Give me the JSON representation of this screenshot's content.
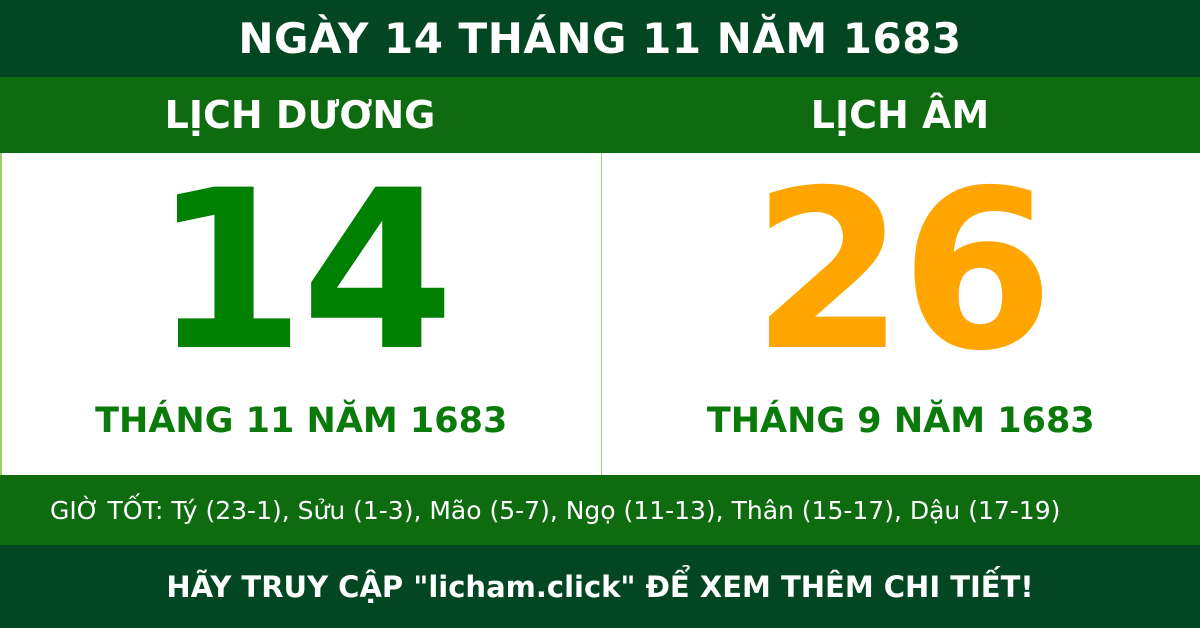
{
  "title": "NGÀY 14 THÁNG 11 NĂM 1683",
  "solar": {
    "heading": "LỊCH DƯƠNG",
    "day": "14",
    "month_year": "THÁNG 11 NĂM 1683"
  },
  "lunar": {
    "heading": "LỊCH ÂM",
    "day": "26",
    "month_year": "THÁNG 9 NĂM 1683"
  },
  "good_hours": "GIỜ TỐT: Tý (23-1), Sửu (1-3), Mão (5-7), Ngọ (11-13), Thân (15-17), Dậu (17-19)",
  "footer": "HÃY TRUY CẬP \"licham.click\" ĐỂ XEM THÊM CHI TIẾT!",
  "colors": {
    "dark_green": "#034722",
    "green": "#0f6b10",
    "solar_day": "#008000",
    "lunar_day": "#ffa500"
  }
}
